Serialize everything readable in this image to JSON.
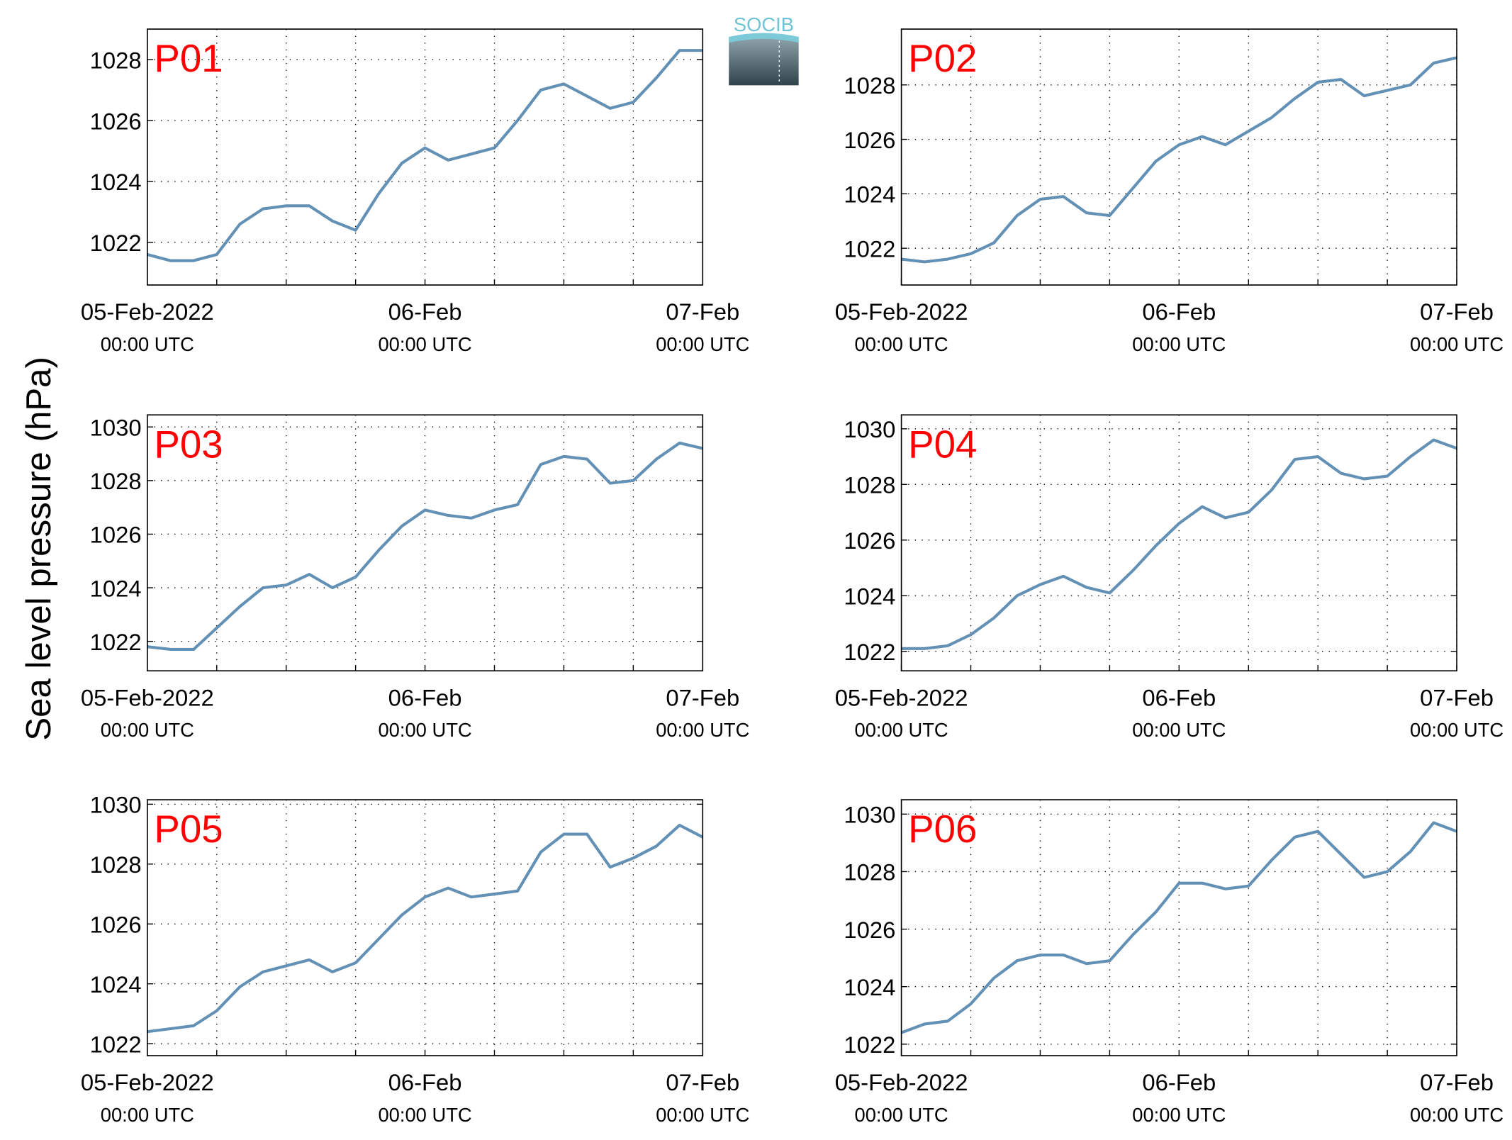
{
  "figure": {
    "ylabel": "Sea level pressure (hPa)",
    "logo": "SOCIB"
  },
  "chart_data": [
    {
      "type": "line",
      "title": "P01",
      "x": [
        0,
        2,
        4,
        6,
        8,
        10,
        12,
        14,
        16,
        18,
        20,
        22,
        24,
        26,
        28,
        30,
        32,
        34,
        36,
        38,
        40,
        42,
        44,
        46,
        48
      ],
      "series": [
        {
          "name": "P01",
          "color": "#6390b5",
          "values": [
            1021.6,
            1021.4,
            1021.4,
            1021.6,
            1022.6,
            1023.1,
            1023.2,
            1023.2,
            1022.7,
            1022.4,
            1023.6,
            1024.6,
            1025.1,
            1024.7,
            1024.9,
            1025.1,
            1026.0,
            1027.0,
            1027.2,
            1026.8,
            1026.4,
            1026.6,
            1027.4,
            1028.3,
            1028.3
          ]
        }
      ],
      "xlim": [
        0,
        48
      ],
      "ylim": [
        1020.6,
        1029.0
      ],
      "yticks": [
        1022,
        1024,
        1026,
        1028
      ],
      "xticks": [
        {
          "value": 0,
          "label": "05-Feb-2022",
          "time_label": "00:00 UTC"
        },
        {
          "value": 24,
          "label": "06-Feb",
          "time_label": "00:00 UTC"
        },
        {
          "value": 48,
          "label": "07-Feb",
          "time_label": "00:00 UTC"
        }
      ],
      "xminor": [
        6,
        12,
        18,
        30,
        36,
        42
      ],
      "grid": true
    },
    {
      "type": "line",
      "title": "P02",
      "x": [
        0,
        2,
        4,
        6,
        8,
        10,
        12,
        14,
        16,
        18,
        20,
        22,
        24,
        26,
        28,
        30,
        32,
        34,
        36,
        38,
        40,
        42,
        44,
        46,
        48
      ],
      "series": [
        {
          "name": "P02",
          "color": "#6390b5",
          "values": [
            1021.6,
            1021.5,
            1021.6,
            1021.8,
            1022.2,
            1023.2,
            1023.8,
            1023.9,
            1023.3,
            1023.2,
            1024.2,
            1025.2,
            1025.8,
            1026.1,
            1025.8,
            1026.3,
            1026.8,
            1027.5,
            1028.1,
            1028.2,
            1027.6,
            1027.8,
            1028.0,
            1028.8,
            1029.0
          ]
        }
      ],
      "xlim": [
        0,
        48
      ],
      "ylim": [
        1020.65,
        1030.05
      ],
      "yticks": [
        1022,
        1024,
        1026,
        1028
      ],
      "xticks": [
        {
          "value": 0,
          "label": "05-Feb-2022",
          "time_label": "00:00 UTC"
        },
        {
          "value": 24,
          "label": "06-Feb",
          "time_label": "00:00 UTC"
        },
        {
          "value": 48,
          "label": "07-Feb",
          "time_label": "00:00 UTC"
        }
      ],
      "xminor": [
        6,
        12,
        18,
        30,
        36,
        42
      ],
      "grid": true
    },
    {
      "type": "line",
      "title": "P03",
      "x": [
        0,
        2,
        4,
        6,
        8,
        10,
        12,
        14,
        16,
        18,
        20,
        22,
        24,
        26,
        28,
        30,
        32,
        34,
        36,
        38,
        40,
        42,
        44,
        46,
        48
      ],
      "series": [
        {
          "name": "P03",
          "color": "#6390b5",
          "values": [
            1021.8,
            1021.7,
            1021.7,
            1022.5,
            1023.3,
            1024.0,
            1024.1,
            1024.5,
            1024.0,
            1024.4,
            1025.4,
            1026.3,
            1026.9,
            1026.7,
            1026.6,
            1026.9,
            1027.1,
            1028.6,
            1028.9,
            1028.8,
            1027.9,
            1028.0,
            1028.8,
            1029.4,
            1029.2
          ]
        }
      ],
      "xlim": [
        0,
        48
      ],
      "ylim": [
        1020.9,
        1030.45
      ],
      "yticks": [
        1022,
        1024,
        1026,
        1028,
        1030
      ],
      "xticks": [
        {
          "value": 0,
          "label": "05-Feb-2022",
          "time_label": "00:00 UTC"
        },
        {
          "value": 24,
          "label": "06-Feb",
          "time_label": "00:00 UTC"
        },
        {
          "value": 48,
          "label": "07-Feb",
          "time_label": "00:00 UTC"
        }
      ],
      "xminor": [
        6,
        12,
        18,
        30,
        36,
        42
      ],
      "grid": true
    },
    {
      "type": "line",
      "title": "P04",
      "x": [
        0,
        2,
        4,
        6,
        8,
        10,
        12,
        14,
        16,
        18,
        20,
        22,
        24,
        26,
        28,
        30,
        32,
        34,
        36,
        38,
        40,
        42,
        44,
        46,
        48
      ],
      "series": [
        {
          "name": "P04",
          "color": "#6390b5",
          "values": [
            1022.1,
            1022.1,
            1022.2,
            1022.6,
            1023.2,
            1024.0,
            1024.4,
            1024.7,
            1024.3,
            1024.1,
            1024.9,
            1025.8,
            1026.6,
            1027.2,
            1026.8,
            1027.0,
            1027.8,
            1028.9,
            1029.0,
            1028.4,
            1028.2,
            1028.3,
            1029.0,
            1029.6,
            1029.3
          ]
        }
      ],
      "xlim": [
        0,
        48
      ],
      "ylim": [
        1021.3,
        1030.5
      ],
      "yticks": [
        1022,
        1024,
        1026,
        1028,
        1030
      ],
      "xticks": [
        {
          "value": 0,
          "label": "05-Feb-2022",
          "time_label": "00:00 UTC"
        },
        {
          "value": 24,
          "label": "06-Feb",
          "time_label": "00:00 UTC"
        },
        {
          "value": 48,
          "label": "07-Feb",
          "time_label": "00:00 UTC"
        }
      ],
      "xminor": [
        6,
        12,
        18,
        30,
        36,
        42
      ],
      "grid": true
    },
    {
      "type": "line",
      "title": "P05",
      "x": [
        0,
        2,
        4,
        6,
        8,
        10,
        12,
        14,
        16,
        18,
        20,
        22,
        24,
        26,
        28,
        30,
        32,
        34,
        36,
        38,
        40,
        42,
        44,
        46,
        48
      ],
      "series": [
        {
          "name": "P05",
          "color": "#6390b5",
          "values": [
            1022.4,
            1022.5,
            1022.6,
            1023.1,
            1023.9,
            1024.4,
            1024.6,
            1024.8,
            1024.4,
            1024.7,
            1025.5,
            1026.3,
            1026.9,
            1027.2,
            1026.9,
            1027.0,
            1027.1,
            1028.4,
            1029.0,
            1029.0,
            1027.9,
            1028.2,
            1028.6,
            1029.3,
            1028.9
          ]
        }
      ],
      "xlim": [
        0,
        48
      ],
      "ylim": [
        1021.6,
        1030.15
      ],
      "yticks": [
        1022,
        1024,
        1026,
        1028,
        1030
      ],
      "xticks": [
        {
          "value": 0,
          "label": "05-Feb-2022",
          "time_label": "00:00 UTC"
        },
        {
          "value": 24,
          "label": "06-Feb",
          "time_label": "00:00 UTC"
        },
        {
          "value": 48,
          "label": "07-Feb",
          "time_label": "00:00 UTC"
        }
      ],
      "xminor": [
        6,
        12,
        18,
        30,
        36,
        42
      ],
      "grid": true
    },
    {
      "type": "line",
      "title": "P06",
      "x": [
        0,
        2,
        4,
        6,
        8,
        10,
        12,
        14,
        16,
        18,
        20,
        22,
        24,
        26,
        28,
        30,
        32,
        34,
        36,
        38,
        40,
        42,
        44,
        46,
        48
      ],
      "series": [
        {
          "name": "P06",
          "color": "#6390b5",
          "values": [
            1022.4,
            1022.7,
            1022.8,
            1023.4,
            1024.3,
            1024.9,
            1025.1,
            1025.1,
            1024.8,
            1024.9,
            1025.8,
            1026.6,
            1027.6,
            1027.6,
            1027.4,
            1027.5,
            1028.4,
            1029.2,
            1029.4,
            1028.6,
            1027.8,
            1028.0,
            1028.7,
            1029.7,
            1029.4
          ]
        }
      ],
      "xlim": [
        0,
        48
      ],
      "ylim": [
        1021.6,
        1030.5
      ],
      "yticks": [
        1022,
        1024,
        1026,
        1028,
        1030
      ],
      "xticks": [
        {
          "value": 0,
          "label": "05-Feb-2022",
          "time_label": "00:00 UTC"
        },
        {
          "value": 24,
          "label": "06-Feb",
          "time_label": "00:00 UTC"
        },
        {
          "value": 48,
          "label": "07-Feb",
          "time_label": "00:00 UTC"
        }
      ],
      "xminor": [
        6,
        12,
        18,
        30,
        36,
        42
      ],
      "grid": true
    }
  ]
}
